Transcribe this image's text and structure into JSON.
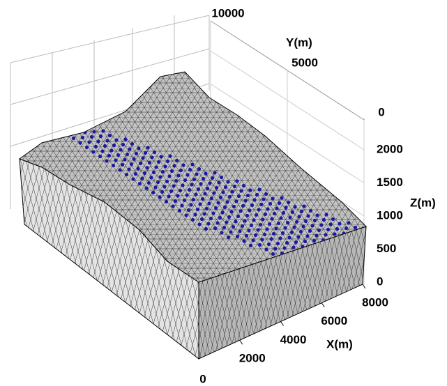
{
  "chart_data": {
    "type": "surface3d",
    "xlabel": "X(m)",
    "ylabel": "Y(m)",
    "zlabel": "Z(m)",
    "xlim": [
      0,
      8000
    ],
    "xticks": [
      2000,
      4000,
      6000,
      8000
    ],
    "ylim": [
      0,
      10000
    ],
    "yticks": [
      0,
      5000,
      10000
    ],
    "zlim": [
      0,
      2000
    ],
    "zticks": [
      0,
      500,
      1000,
      1500,
      2000
    ],
    "x_origin_tick": 0,
    "grid": true,
    "surface_color": "#a9a9a9",
    "point_color": "#1a1aa0"
  }
}
